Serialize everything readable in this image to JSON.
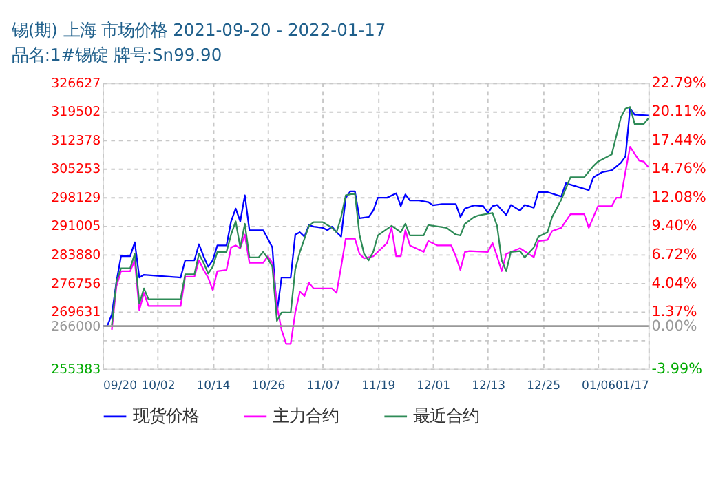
{
  "chart_data": {
    "type": "line",
    "title": "锡(期) 上海 市场价格 2021-09-20 - 2022-01-17",
    "subtitle": "品名:1#锡锭 牌号:Sn99.90",
    "series": [
      {
        "name": "现货价格",
        "color": "#0000ff",
        "x": [
          "2021-09-20",
          "2021-09-21",
          "2021-09-22",
          "2021-09-23",
          "2021-09-24",
          "2021-09-26",
          "2021-09-27",
          "2021-09-28",
          "2021-09-29",
          "2021-10-07",
          "2021-10-08",
          "2021-10-10",
          "2021-10-11",
          "2021-10-12",
          "2021-10-13",
          "2021-10-14",
          "2021-10-15",
          "2021-10-17",
          "2021-10-18",
          "2021-10-19",
          "2021-10-20",
          "2021-10-21",
          "2021-10-22",
          "2021-10-25",
          "2021-10-26",
          "2021-10-27",
          "2021-10-28",
          "2021-10-29",
          "2021-10-31",
          "2021-11-01",
          "2021-11-02",
          "2021-11-03",
          "2021-11-04",
          "2021-11-05",
          "2021-11-07",
          "2021-11-08",
          "2021-11-09",
          "2021-11-10",
          "2021-11-11",
          "2021-11-12",
          "2021-11-13",
          "2021-11-14",
          "2021-11-15",
          "2021-11-17",
          "2021-11-18",
          "2021-11-19",
          "2021-11-21",
          "2021-11-23",
          "2021-11-24",
          "2021-11-25",
          "2021-11-26",
          "2021-11-28",
          "2021-11-30",
          "2021-12-01",
          "2021-12-03",
          "2021-12-06",
          "2021-12-07",
          "2021-12-08",
          "2021-12-10",
          "2021-12-12",
          "2021-12-13",
          "2021-12-14",
          "2021-12-15",
          "2021-12-17",
          "2021-12-18",
          "2021-12-20",
          "2021-12-21",
          "2021-12-23",
          "2021-12-24",
          "2021-12-26",
          "2021-12-29",
          "2021-12-30",
          "2022-01-04",
          "2022-01-05",
          "2022-01-07",
          "2022-01-09",
          "2022-01-11",
          "2022-01-12",
          "2022-01-13",
          "2022-01-14",
          "2022-01-17"
        ],
        "values": [
          266000,
          266000,
          268900,
          277000,
          283400,
          283400,
          286900,
          278100,
          278800,
          278100,
          282400,
          282400,
          286400,
          283400,
          280800,
          282400,
          286100,
          286100,
          292100,
          295300,
          292100,
          298600,
          289900,
          289900,
          287800,
          285600,
          269400,
          278100,
          278100,
          288800,
          289400,
          288300,
          291200,
          290800,
          290500,
          289900,
          290800,
          289400,
          288300,
          298000,
          299600,
          299600,
          292900,
          293200,
          294800,
          298000,
          298000,
          299100,
          295900,
          298800,
          297300,
          297300,
          296900,
          296100,
          296400,
          296400,
          293200,
          295300,
          296100,
          295900,
          294200,
          295900,
          296200,
          293700,
          296200,
          294800,
          296200,
          295500,
          299400,
          299400,
          298300,
          301600,
          299900,
          303100,
          304400,
          304800,
          306700,
          308300,
          320200,
          318700,
          318500
        ]
      },
      {
        "name": "主力合约",
        "color": "#ff00ff",
        "x": [
          "2021-09-22",
          "2021-09-23",
          "2021-09-24",
          "2021-09-26",
          "2021-09-27",
          "2021-09-28",
          "2021-09-29",
          "2021-09-30",
          "2021-10-07",
          "2021-10-08",
          "2021-10-10",
          "2021-10-11",
          "2021-10-12",
          "2021-10-13",
          "2021-10-14",
          "2021-10-15",
          "2021-10-17",
          "2021-10-18",
          "2021-10-19",
          "2021-10-20",
          "2021-10-21",
          "2021-10-22",
          "2021-10-25",
          "2021-10-26",
          "2021-10-27",
          "2021-10-28",
          "2021-10-29",
          "2021-10-30",
          "2021-10-31",
          "2021-11-01",
          "2021-11-02",
          "2021-11-03",
          "2021-11-04",
          "2021-11-05",
          "2021-11-09",
          "2021-11-10",
          "2021-11-11",
          "2021-11-12",
          "2021-11-14",
          "2021-11-15",
          "2021-11-16",
          "2021-11-18",
          "2021-11-21",
          "2021-11-22",
          "2021-11-23",
          "2021-11-24",
          "2021-11-25",
          "2021-11-26",
          "2021-11-29",
          "2021-11-30",
          "2021-12-02",
          "2021-12-05",
          "2021-12-06",
          "2021-12-07",
          "2021-12-08",
          "2021-12-09",
          "2021-12-13",
          "2021-12-14",
          "2021-12-15",
          "2021-12-16",
          "2021-12-17",
          "2021-12-20",
          "2021-12-23",
          "2021-12-24",
          "2021-12-26",
          "2021-12-27",
          "2021-12-29",
          "2021-12-31",
          "2022-01-03",
          "2022-01-04",
          "2022-01-06",
          "2022-01-09",
          "2022-01-10",
          "2022-01-11",
          "2022-01-12",
          "2022-01-13",
          "2022-01-15",
          "2022-01-16",
          "2022-01-17"
        ],
        "values": [
          265100,
          275900,
          279700,
          279700,
          282400,
          270000,
          274300,
          271000,
          271000,
          278300,
          278300,
          282400,
          280000,
          278100,
          275000,
          279700,
          280000,
          285600,
          286100,
          285400,
          288800,
          281800,
          281800,
          283400,
          281800,
          271000,
          265100,
          261600,
          261600,
          269400,
          274600,
          273500,
          276800,
          275400,
          275400,
          274300,
          280800,
          287800,
          287800,
          284000,
          282900,
          283400,
          286700,
          290500,
          283400,
          283400,
          289900,
          286100,
          284500,
          287200,
          286100,
          286100,
          283400,
          280000,
          284500,
          284700,
          284500,
          286700,
          283400,
          279700,
          284000,
          285400,
          283200,
          287200,
          287500,
          289700,
          290500,
          293900,
          293900,
          290500,
          295900,
          295900,
          298000,
          298000,
          304500,
          310700,
          307200,
          307000,
          305600
        ]
      },
      {
        "name": "最近合约",
        "color": "#2e8b57",
        "x": [
          "2021-09-22",
          "2021-09-23",
          "2021-09-24",
          "2021-09-26",
          "2021-09-27",
          "2021-09-28",
          "2021-09-29",
          "2021-09-30",
          "2021-10-07",
          "2021-10-08",
          "2021-10-10",
          "2021-10-11",
          "2021-10-12",
          "2021-10-13",
          "2021-10-14",
          "2021-10-15",
          "2021-10-17",
          "2021-10-18",
          "2021-10-19",
          "2021-10-20",
          "2021-10-21",
          "2021-10-22",
          "2021-10-24",
          "2021-10-25",
          "2021-10-26",
          "2021-10-27",
          "2021-10-28",
          "2021-10-29",
          "2021-10-31",
          "2021-11-01",
          "2021-11-02",
          "2021-11-03",
          "2021-11-04",
          "2021-11-05",
          "2021-11-07",
          "2021-11-09",
          "2021-11-10",
          "2021-11-11",
          "2021-11-12",
          "2021-11-14",
          "2021-11-15",
          "2021-11-16",
          "2021-11-17",
          "2021-11-18",
          "2021-11-19",
          "2021-11-22",
          "2021-11-24",
          "2021-11-25",
          "2021-11-26",
          "2021-11-29",
          "2021-11-30",
          "2021-12-04",
          "2021-12-06",
          "2021-12-07",
          "2021-12-08",
          "2021-12-10",
          "2021-12-11",
          "2021-12-13",
          "2021-12-14",
          "2021-12-15",
          "2021-12-16",
          "2021-12-17",
          "2021-12-18",
          "2021-12-20",
          "2021-12-21",
          "2021-12-23",
          "2021-12-24",
          "2021-12-26",
          "2021-12-27",
          "2021-12-29",
          "2021-12-31",
          "2022-01-03",
          "2022-01-05",
          "2022-01-06",
          "2022-01-09",
          "2022-01-11",
          "2022-01-12",
          "2022-01-13",
          "2022-01-14",
          "2022-01-16",
          "2022-01-17"
        ],
        "values": [
          266200,
          277000,
          280400,
          280400,
          284000,
          271600,
          275400,
          272700,
          272700,
          278900,
          278900,
          284000,
          281800,
          279100,
          280800,
          284500,
          284500,
          288800,
          292100,
          285600,
          291500,
          283100,
          283100,
          284500,
          282900,
          280800,
          267300,
          269400,
          269400,
          280200,
          284500,
          287800,
          291000,
          291900,
          291900,
          290500,
          289400,
          293200,
          298600,
          299100,
          288800,
          284000,
          282400,
          284500,
          288600,
          291000,
          289400,
          291500,
          288600,
          288600,
          291200,
          290500,
          288800,
          288600,
          291500,
          293200,
          293600,
          294000,
          294200,
          291000,
          282400,
          279700,
          284500,
          284700,
          283100,
          285600,
          288300,
          289400,
          293200,
          297500,
          303100,
          303100,
          305900,
          307000,
          308800,
          318000,
          320200,
          320600,
          316400,
          316400,
          317800
        ]
      }
    ],
    "xlim": [
      "2021-09-20",
      "2022-01-17"
    ],
    "xticks": [
      {
        "value": "2021-09-20",
        "label": "09/20"
      },
      {
        "value": "2021-10-02",
        "label": "10/02"
      },
      {
        "value": "2021-10-14",
        "label": "10/14"
      },
      {
        "value": "2021-10-26",
        "label": "10/26"
      },
      {
        "value": "2021-11-07",
        "label": "11/07"
      },
      {
        "value": "2021-11-19",
        "label": "11/19"
      },
      {
        "value": "2021-12-01",
        "label": "12/01"
      },
      {
        "value": "2021-12-13",
        "label": "12/13"
      },
      {
        "value": "2021-12-25",
        "label": "12/25"
      },
      {
        "value": "2022-01-06",
        "label": "01/06"
      },
      {
        "value": "2022-01-17",
        "label": "01/17"
      }
    ],
    "ylim": [
      255383,
      326627
    ],
    "yticks": [
      326627,
      319502,
      312378,
      305253,
      298129,
      291005,
      283880,
      276756,
      269631,
      266000,
      {
        "value": 262507,
        "label": null
      },
      255383
    ],
    "y2lim": [
      -3.99,
      22.79
    ],
    "y2ticks": [
      {
        "value": 22.79,
        "label": "22.79%"
      },
      {
        "value": 20.11,
        "label": "20.11%"
      },
      {
        "value": 17.44,
        "label": "17.44%"
      },
      {
        "value": 14.76,
        "label": "14.76%"
      },
      {
        "value": 12.08,
        "label": "12.08%"
      },
      {
        "value": 9.4,
        "label": "9.40%"
      },
      {
        "value": 6.72,
        "label": "6.72%"
      },
      {
        "value": 4.04,
        "label": "4.04%"
      },
      {
        "value": 1.37,
        "label": "1.37%"
      },
      {
        "value": 0,
        "label": "0.00%"
      },
      {
        "value": -3.99,
        "label": "-3.99%"
      }
    ],
    "ref_lines": [
      {
        "axis": "y2",
        "value": 0,
        "color": "#999999"
      }
    ],
    "grid": true,
    "legend": "bottom",
    "marker": "none",
    "line_style": "solid"
  }
}
